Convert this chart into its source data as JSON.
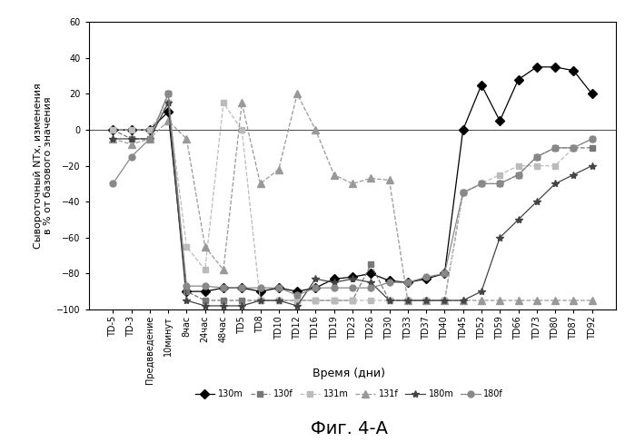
{
  "x_labels": [
    "TD-5",
    "TD-3",
    "Предвведение",
    "10минут",
    "8час",
    "24час",
    "48час",
    "TD5",
    "TD8",
    "TD10",
    "TD12",
    "TD16",
    "TD19",
    "TD23",
    "TD26",
    "TD30",
    "TD33",
    "TD37",
    "TD40",
    "TD45",
    "TD52",
    "TD59",
    "TD66",
    "TD73",
    "TD80",
    "TD87",
    "TD92"
  ],
  "series": {
    "130m": {
      "label": "130m",
      "marker": "D",
      "linestyle": "-",
      "color": "#000000",
      "markersize": 5,
      "values": [
        0,
        0,
        0,
        10,
        -90,
        -90,
        -88,
        -88,
        -90,
        -88,
        -90,
        -88,
        -83,
        -82,
        -80,
        -84,
        -85,
        -83,
        -80,
        0,
        25,
        5,
        28,
        35,
        35,
        33,
        20
      ]
    },
    "130f": {
      "label": "130f",
      "marker": "s",
      "linestyle": "--",
      "color": "#777777",
      "markersize": 4,
      "values": [
        0,
        -5,
        -5,
        20,
        -90,
        -95,
        -95,
        -95,
        -95,
        -95,
        -95,
        -95,
        -95,
        -95,
        -75,
        -95,
        -95,
        -95,
        -95,
        -35,
        -30,
        -30,
        -25,
        -15,
        -10,
        -10,
        -10
      ]
    },
    "131m": {
      "label": "131m",
      "marker": "s",
      "linestyle": "--",
      "color": "#bbbbbb",
      "markersize": 4,
      "values": [
        0,
        0,
        0,
        15,
        -65,
        -78,
        15,
        0,
        -95,
        -95,
        -95,
        -95,
        -95,
        -95,
        -95,
        -95,
        -95,
        -95,
        -95,
        -35,
        -30,
        -25,
        -20,
        -20,
        -20,
        -10,
        -5
      ]
    },
    "131f": {
      "label": "131f",
      "marker": "^",
      "linestyle": "--",
      "color": "#999999",
      "markersize": 6,
      "values": [
        -5,
        -8,
        -5,
        5,
        -5,
        -65,
        -78,
        15,
        -30,
        -22,
        20,
        0,
        -25,
        -30,
        -27,
        -28,
        -95,
        -95,
        -95,
        -95,
        -95,
        -95,
        -95,
        -95,
        -95,
        -95,
        -95
      ]
    },
    "180m": {
      "label": "180m",
      "marker": "*",
      "linestyle": "-",
      "color": "#444444",
      "markersize": 6,
      "values": [
        -5,
        -5,
        -5,
        15,
        -95,
        -98,
        -98,
        -98,
        -95,
        -95,
        -98,
        -83,
        -85,
        -83,
        -85,
        -95,
        -95,
        -95,
        -95,
        -95,
        -90,
        -60,
        -50,
        -40,
        -30,
        -25,
        -20
      ]
    },
    "180f": {
      "label": "180f",
      "marker": "o",
      "linestyle": "-",
      "color": "#888888",
      "markersize": 5,
      "values": [
        -30,
        -15,
        -5,
        20,
        -87,
        -87,
        -88,
        -88,
        -88,
        -88,
        -92,
        -88,
        -88,
        -88,
        -88,
        -85,
        -85,
        -82,
        -80,
        -35,
        -30,
        -30,
        -25,
        -15,
        -10,
        -10,
        -5
      ]
    }
  },
  "ylabel": "Сывороточный NTx, изменения\nв % от базового значения",
  "xlabel": "Время (дни)",
  "title": "Фиг. 4-А",
  "ylim": [
    -100,
    60
  ],
  "yticks": [
    -100,
    -80,
    -60,
    -40,
    -20,
    0,
    20,
    40,
    60
  ],
  "figsize": [
    6.99,
    4.87
  ],
  "dpi": 100
}
